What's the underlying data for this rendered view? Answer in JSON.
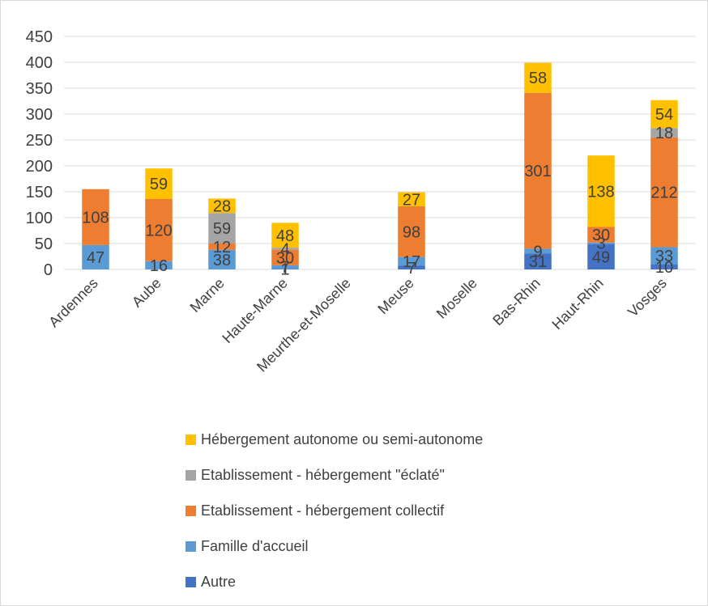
{
  "chart_data": {
    "type": "bar",
    "stacked": true,
    "categories": [
      "Ardennes",
      "Aube",
      "Marne",
      "Haute-Marne",
      "Meurthe-et-Moselle",
      "Meuse",
      "Moselle",
      "Bas-Rhin",
      "Haut-Rhin",
      "Vosges"
    ],
    "ylim": [
      0,
      450
    ],
    "yticks": [
      0,
      50,
      100,
      150,
      200,
      250,
      300,
      350,
      400,
      450
    ],
    "grid": true,
    "legend_position": "bottom",
    "series": [
      {
        "name": "Autre",
        "color": "#4472C4",
        "values": [
          null,
          null,
          null,
          1,
          null,
          7,
          null,
          31,
          49,
          10
        ]
      },
      {
        "name": "Famille d'accueil",
        "color": "#5B9BD5",
        "values": [
          47,
          16,
          38,
          7,
          null,
          17,
          null,
          9,
          3,
          33
        ]
      },
      {
        "name": "Etablissement - hébergement collectif",
        "color": "#ED7D31",
        "values": [
          108,
          120,
          12,
          30,
          null,
          98,
          null,
          301,
          30,
          212
        ]
      },
      {
        "name": "Etablissement - hébergement \"éclaté\"",
        "color": "#A5A5A5",
        "values": [
          null,
          null,
          59,
          4,
          null,
          null,
          null,
          null,
          null,
          18
        ]
      },
      {
        "name": "Hébergement autonome ou semi-autonome",
        "color": "#FFC000",
        "values": [
          null,
          59,
          28,
          48,
          null,
          27,
          null,
          58,
          138,
          54
        ]
      }
    ]
  }
}
